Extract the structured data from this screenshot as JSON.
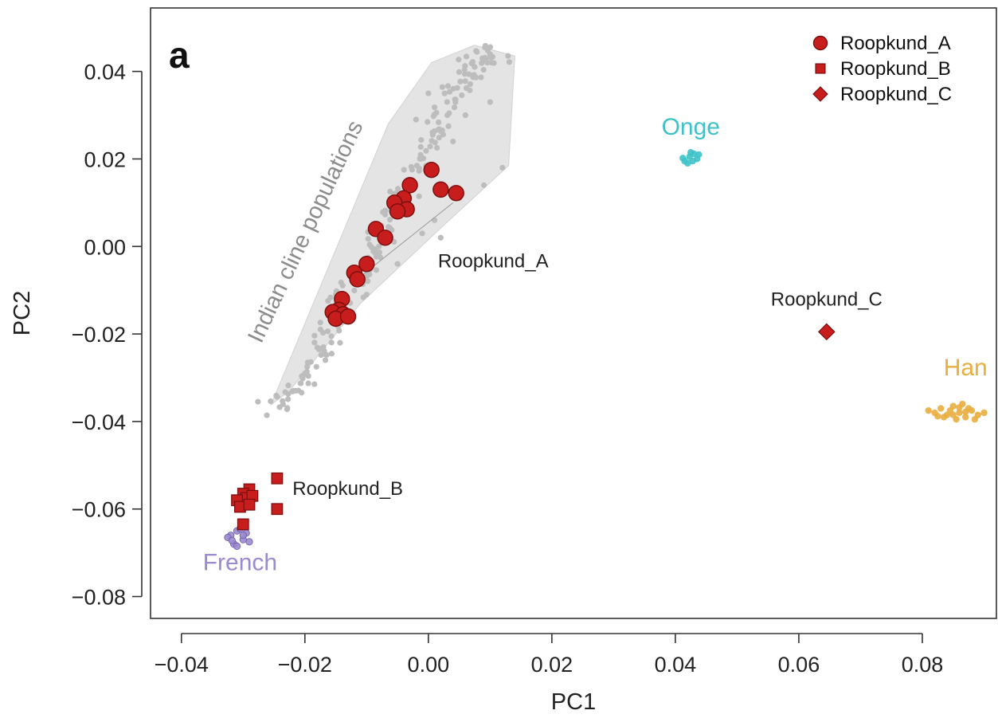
{
  "chart_data": {
    "type": "scatter",
    "panel_label": "a",
    "xlabel": "PC1",
    "ylabel": "PC2",
    "xlim": [
      -0.045,
      0.092
    ],
    "ylim": [
      -0.085,
      0.0545
    ],
    "x_ticks": [
      -0.04,
      -0.02,
      0.0,
      0.02,
      0.04,
      0.06,
      0.08
    ],
    "x_tick_labels": [
      "−0.04",
      "−0.02",
      "0.00",
      "0.02",
      "0.04",
      "0.06",
      "0.08"
    ],
    "y_ticks": [
      0.04,
      0.02,
      0.0,
      -0.02,
      -0.04,
      -0.06,
      -0.08
    ],
    "y_tick_labels": [
      "0.04",
      "0.02",
      "0.00",
      "−0.02",
      "−0.04",
      "−0.06",
      "−0.08"
    ],
    "grid": false,
    "legend_position": "top-right",
    "legend": [
      {
        "label": "Roopkund_A",
        "marker": "circle"
      },
      {
        "label": "Roopkund_B",
        "marker": "square"
      },
      {
        "label": "Roopkund_C",
        "marker": "diamond"
      }
    ],
    "colors": {
      "roopkund": "#c81d1d",
      "roopkund_edge": "#7a0e0e",
      "cline": "#bdbdbd",
      "cline_hull": "#e4e4e4",
      "onge": "#3dc2c9",
      "han": "#e9ae3e",
      "french": "#9b8ad0"
    },
    "background_groups": [
      {
        "name": "Indian cline populations",
        "label_color": "#8c8c8c",
        "hull": [
          [
            -0.0255,
            -0.0362
          ],
          [
            -0.0065,
            0.028
          ],
          [
            0.0005,
            0.042
          ],
          [
            0.0075,
            0.046
          ],
          [
            0.014,
            0.0435
          ],
          [
            0.013,
            0.0185
          ],
          [
            0.003,
            0.0055
          ],
          [
            -0.011,
            -0.013
          ],
          [
            -0.0225,
            -0.033
          ]
        ],
        "spine": [
          [
            -0.0255,
            -0.0375
          ],
          [
            -0.0215,
            -0.032
          ],
          [
            -0.0175,
            -0.024
          ],
          [
            -0.015,
            -0.0165
          ],
          [
            -0.012,
            -0.009
          ],
          [
            -0.0095,
            -0.002
          ],
          [
            -0.0065,
            0.006
          ],
          [
            -0.003,
            0.015
          ],
          [
            0.0,
            0.024
          ],
          [
            0.0025,
            0.032
          ],
          [
            0.0055,
            0.039
          ],
          [
            0.008,
            0.043
          ],
          [
            0.012,
            0.0445
          ]
        ],
        "scatter": [
          [
            0.001,
            0.006
          ],
          [
            0.005,
            0.011
          ],
          [
            0.009,
            0.014
          ],
          [
            0.012,
            0.018
          ],
          [
            -0.005,
            -0.004
          ],
          [
            -0.001,
            0.003
          ],
          [
            0.002,
            0.002
          ],
          [
            -0.01,
            -0.011
          ],
          [
            -0.013,
            -0.016
          ],
          [
            -0.017,
            -0.023
          ],
          [
            -0.02,
            -0.029
          ],
          [
            -0.008,
            0.0
          ],
          [
            0.004,
            0.024
          ],
          [
            0.01,
            0.033
          ],
          [
            -0.002,
            0.029
          ],
          [
            0.0,
            0.035
          ],
          [
            0.006,
            0.03
          ]
        ]
      },
      {
        "name": "Onge",
        "label_color": "#3dc2c9",
        "points": [
          [
            0.0415,
            0.0195
          ],
          [
            0.0423,
            0.0205
          ],
          [
            0.043,
            0.0212
          ],
          [
            0.042,
            0.019
          ],
          [
            0.0435,
            0.02
          ],
          [
            0.0412,
            0.0202
          ],
          [
            0.0428,
            0.0195
          ],
          [
            0.0438,
            0.021
          ],
          [
            0.0425,
            0.0215
          ]
        ]
      },
      {
        "name": "Han",
        "label_color": "#e9ae3e",
        "points": [
          [
            0.081,
            -0.0375
          ],
          [
            0.082,
            -0.038
          ],
          [
            0.083,
            -0.037
          ],
          [
            0.084,
            -0.0385
          ],
          [
            0.085,
            -0.0365
          ],
          [
            0.086,
            -0.038
          ],
          [
            0.087,
            -0.039
          ],
          [
            0.088,
            -0.0375
          ],
          [
            0.089,
            -0.0385
          ],
          [
            0.09,
            -0.038
          ],
          [
            0.0855,
            -0.0395
          ],
          [
            0.0865,
            -0.036
          ],
          [
            0.0835,
            -0.039
          ],
          [
            0.0875,
            -0.037
          ],
          [
            0.0845,
            -0.0375
          ],
          [
            0.0825,
            -0.0388
          ],
          [
            0.0885,
            -0.0395
          ],
          [
            0.086,
            -0.0368
          ],
          [
            0.085,
            -0.0385
          ],
          [
            0.087,
            -0.0378
          ]
        ]
      },
      {
        "name": "French",
        "label_color": "#9b8ad0",
        "points": [
          [
            -0.032,
            -0.066
          ],
          [
            -0.031,
            -0.065
          ],
          [
            -0.03,
            -0.067
          ],
          [
            -0.0315,
            -0.068
          ],
          [
            -0.0295,
            -0.0655
          ],
          [
            -0.0305,
            -0.0645
          ],
          [
            -0.0325,
            -0.0665
          ],
          [
            -0.029,
            -0.0675
          ],
          [
            -0.031,
            -0.0685
          ],
          [
            -0.03,
            -0.066
          ],
          [
            -0.0318,
            -0.0672
          ]
        ]
      }
    ],
    "series": [
      {
        "name": "Roopkund_A",
        "marker": "circle",
        "points": [
          [
            0.0005,
            0.0175
          ],
          [
            -0.003,
            0.014
          ],
          [
            0.002,
            0.013
          ],
          [
            0.0045,
            0.0122
          ],
          [
            -0.004,
            0.011
          ],
          [
            -0.0055,
            0.01
          ],
          [
            -0.0035,
            0.0085
          ],
          [
            -0.005,
            0.008
          ],
          [
            -0.0085,
            0.004
          ],
          [
            -0.007,
            0.002
          ],
          [
            -0.01,
            -0.004
          ],
          [
            -0.012,
            -0.006
          ],
          [
            -0.0115,
            -0.0075
          ],
          [
            -0.014,
            -0.012
          ],
          [
            -0.0145,
            -0.0145
          ],
          [
            -0.0155,
            -0.015
          ],
          [
            -0.0138,
            -0.0155
          ],
          [
            -0.015,
            -0.0165
          ],
          [
            -0.013,
            -0.016
          ]
        ]
      },
      {
        "name": "Roopkund_B",
        "marker": "square",
        "points": [
          [
            -0.029,
            -0.0555
          ],
          [
            -0.03,
            -0.0565
          ],
          [
            -0.0295,
            -0.0575
          ],
          [
            -0.031,
            -0.058
          ],
          [
            -0.0285,
            -0.057
          ],
          [
            -0.0305,
            -0.0595
          ],
          [
            -0.029,
            -0.059
          ],
          [
            -0.03,
            -0.0635
          ],
          [
            -0.0245,
            -0.053
          ],
          [
            -0.0245,
            -0.06
          ]
        ]
      },
      {
        "name": "Roopkund_C",
        "marker": "diamond",
        "points": [
          [
            0.0645,
            -0.0195
          ]
        ]
      }
    ],
    "annotations": [
      {
        "text": "Roopkund_A",
        "x": 0.0105,
        "y": -0.0048,
        "color": "#222222"
      },
      {
        "text": "Roopkund_B",
        "x": -0.022,
        "y": -0.0568,
        "color": "#222222"
      },
      {
        "text": "Roopkund_C",
        "x": 0.0645,
        "y": -0.0135,
        "color": "#222222"
      },
      {
        "text": "Onge",
        "x": 0.0425,
        "y": 0.0255,
        "color": "#3dc2c9"
      },
      {
        "text": "Han",
        "x": 0.087,
        "y": -0.0295,
        "color": "#e9ae3e"
      },
      {
        "text": "French",
        "x": -0.0305,
        "y": -0.074,
        "color": "#9b8ad0"
      }
    ]
  }
}
